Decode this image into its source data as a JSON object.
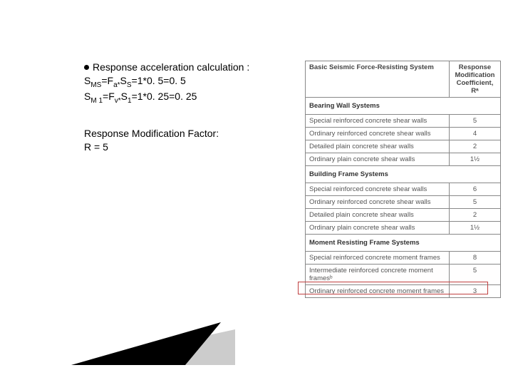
{
  "left": {
    "bullet_line": "Response  acceleration calculation :",
    "eq1_prefix": "S",
    "eq1_sub1": "MS",
    "eq1_mid1": "=F",
    "eq1_sub2": "a*",
    "eq1_mid2": "S",
    "eq1_sub3": "S",
    "eq1_end": "=1*0. 5=0. 5",
    "eq2_prefix": "S",
    "eq2_sub1": "M 1",
    "eq2_mid1": "=F",
    "eq2_sub2": "v*",
    "eq2_mid2": "S",
    "eq2_sub3": "1",
    "eq2_end": "=1*0. 25=0. 25",
    "rmf_line1": "Response Modification Factor:",
    "rmf_line2": "R = 5"
  },
  "table": {
    "header_col1": "Basic Seismic Force-Resisting System",
    "header_col2_l1": "Response",
    "header_col2_l2": "Modification",
    "header_col2_l3": "Coefficient,",
    "header_col2_l4": "Rᵃ",
    "sections": [
      {
        "title": "Bearing Wall Systems",
        "rows": [
          {
            "name": "Special reinforced concrete shear walls",
            "val": "5"
          },
          {
            "name": "Ordinary reinforced concrete shear walls",
            "val": "4"
          },
          {
            "name": "Detailed plain concrete shear walls",
            "val": "2"
          },
          {
            "name": "Ordinary plain concrete shear walls",
            "val": "1½"
          }
        ]
      },
      {
        "title": "Building Frame Systems",
        "rows": [
          {
            "name": "Special reinforced concrete shear walls",
            "val": "6"
          },
          {
            "name": "Ordinary reinforced concrete shear walls",
            "val": "5"
          },
          {
            "name": "Detailed plain concrete shear walls",
            "val": "2"
          },
          {
            "name": "Ordinary plain concrete shear walls",
            "val": "1½"
          }
        ]
      },
      {
        "title": "Moment Resisting Frame Systems",
        "rows": [
          {
            "name": "Special reinforced concrete moment frames",
            "val": "8"
          },
          {
            "name": "Intermediate reinforced concrete moment framesᵇ",
            "val": "5"
          },
          {
            "name": "Ordinary reinforced concrete moment frames",
            "val": "3"
          }
        ]
      }
    ]
  },
  "colors": {
    "wedge_black": "#000000",
    "wedge_gray": "#cccccc",
    "highlight_border": "#c04040"
  }
}
